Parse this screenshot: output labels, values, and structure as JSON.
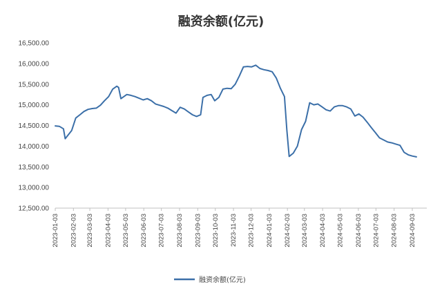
{
  "chart_data": {
    "type": "line",
    "title": "融资余额(亿元)",
    "xlabel": "",
    "ylabel": "",
    "ylim": [
      12500,
      16500
    ],
    "yticks": [
      "12,500.00",
      "13,000.00",
      "13,500.00",
      "14,000.00",
      "14,500.00",
      "15,000.00",
      "15,500.00",
      "16,000.00",
      "16,500.00"
    ],
    "xticks": [
      "2023-01-03",
      "2023-02-03",
      "2023-03-03",
      "2023-04-03",
      "2023-05-03",
      "2023-06-03",
      "2023-07-03",
      "2023-08-03",
      "2023-09-03",
      "2023-10-03",
      "2023-11-03",
      "2023-12-03",
      "2024-01-03",
      "2024-02-03",
      "2024-03-03",
      "2024-04-03",
      "2024-05-03",
      "2024-06-03",
      "2024-07-03",
      "2024-08-03",
      "2024-09-03"
    ],
    "grid": false,
    "legend_position": "bottom",
    "series": [
      {
        "name": "融资余额(亿元)",
        "color": "#3b6fa8",
        "points": [
          [
            "2023-01-03",
            14490
          ],
          [
            "2023-01-10",
            14480
          ],
          [
            "2023-01-17",
            14420
          ],
          [
            "2023-01-20",
            14180
          ],
          [
            "2023-01-31",
            14380
          ],
          [
            "2023-02-07",
            14680
          ],
          [
            "2023-02-14",
            14760
          ],
          [
            "2023-02-21",
            14840
          ],
          [
            "2023-02-28",
            14890
          ],
          [
            "2023-03-07",
            14910
          ],
          [
            "2023-03-14",
            14920
          ],
          [
            "2023-03-21",
            14990
          ],
          [
            "2023-03-28",
            15100
          ],
          [
            "2023-04-04",
            15200
          ],
          [
            "2023-04-11",
            15380
          ],
          [
            "2023-04-18",
            15450
          ],
          [
            "2023-04-21",
            15420
          ],
          [
            "2023-04-25",
            15150
          ],
          [
            "2023-05-05",
            15250
          ],
          [
            "2023-05-12",
            15230
          ],
          [
            "2023-05-19",
            15200
          ],
          [
            "2023-05-26",
            15160
          ],
          [
            "2023-06-02",
            15120
          ],
          [
            "2023-06-09",
            15150
          ],
          [
            "2023-06-16",
            15100
          ],
          [
            "2023-06-23",
            15020
          ],
          [
            "2023-06-30",
            14990
          ],
          [
            "2023-07-07",
            14960
          ],
          [
            "2023-07-14",
            14920
          ],
          [
            "2023-07-21",
            14860
          ],
          [
            "2023-07-28",
            14800
          ],
          [
            "2023-08-04",
            14940
          ],
          [
            "2023-08-11",
            14900
          ],
          [
            "2023-08-18",
            14830
          ],
          [
            "2023-08-25",
            14760
          ],
          [
            "2023-09-01",
            14720
          ],
          [
            "2023-09-08",
            14760
          ],
          [
            "2023-09-12",
            15180
          ],
          [
            "2023-09-19",
            15230
          ],
          [
            "2023-09-26",
            15250
          ],
          [
            "2023-10-02",
            15100
          ],
          [
            "2023-10-09",
            15180
          ],
          [
            "2023-10-16",
            15380
          ],
          [
            "2023-10-23",
            15400
          ],
          [
            "2023-10-30",
            15390
          ],
          [
            "2023-11-06",
            15500
          ],
          [
            "2023-11-13",
            15700
          ],
          [
            "2023-11-20",
            15920
          ],
          [
            "2023-11-27",
            15930
          ],
          [
            "2023-12-04",
            15920
          ],
          [
            "2023-12-11",
            15960
          ],
          [
            "2023-12-18",
            15880
          ],
          [
            "2023-12-25",
            15850
          ],
          [
            "2024-01-01",
            15830
          ],
          [
            "2024-01-08",
            15800
          ],
          [
            "2024-01-15",
            15650
          ],
          [
            "2024-01-22",
            15400
          ],
          [
            "2024-01-29",
            15200
          ],
          [
            "2024-02-02",
            14400
          ],
          [
            "2024-02-06",
            13750
          ],
          [
            "2024-02-13",
            13830
          ],
          [
            "2024-02-20",
            14000
          ],
          [
            "2024-02-27",
            14400
          ],
          [
            "2024-03-05",
            14600
          ],
          [
            "2024-03-12",
            15050
          ],
          [
            "2024-03-19",
            15000
          ],
          [
            "2024-03-26",
            15020
          ],
          [
            "2024-04-02",
            14950
          ],
          [
            "2024-04-09",
            14880
          ],
          [
            "2024-04-16",
            14850
          ],
          [
            "2024-04-23",
            14950
          ],
          [
            "2024-04-30",
            14980
          ],
          [
            "2024-05-07",
            14980
          ],
          [
            "2024-05-14",
            14950
          ],
          [
            "2024-05-21",
            14900
          ],
          [
            "2024-05-28",
            14730
          ],
          [
            "2024-06-04",
            14780
          ],
          [
            "2024-06-11",
            14700
          ],
          [
            "2024-06-18",
            14580
          ],
          [
            "2024-06-25",
            14450
          ],
          [
            "2024-07-02",
            14330
          ],
          [
            "2024-07-09",
            14200
          ],
          [
            "2024-07-16",
            14150
          ],
          [
            "2024-07-23",
            14100
          ],
          [
            "2024-07-30",
            14080
          ],
          [
            "2024-08-06",
            14050
          ],
          [
            "2024-08-13",
            14020
          ],
          [
            "2024-08-20",
            13850
          ],
          [
            "2024-08-27",
            13790
          ],
          [
            "2024-09-03",
            13760
          ],
          [
            "2024-09-10",
            13740
          ]
        ]
      }
    ]
  }
}
